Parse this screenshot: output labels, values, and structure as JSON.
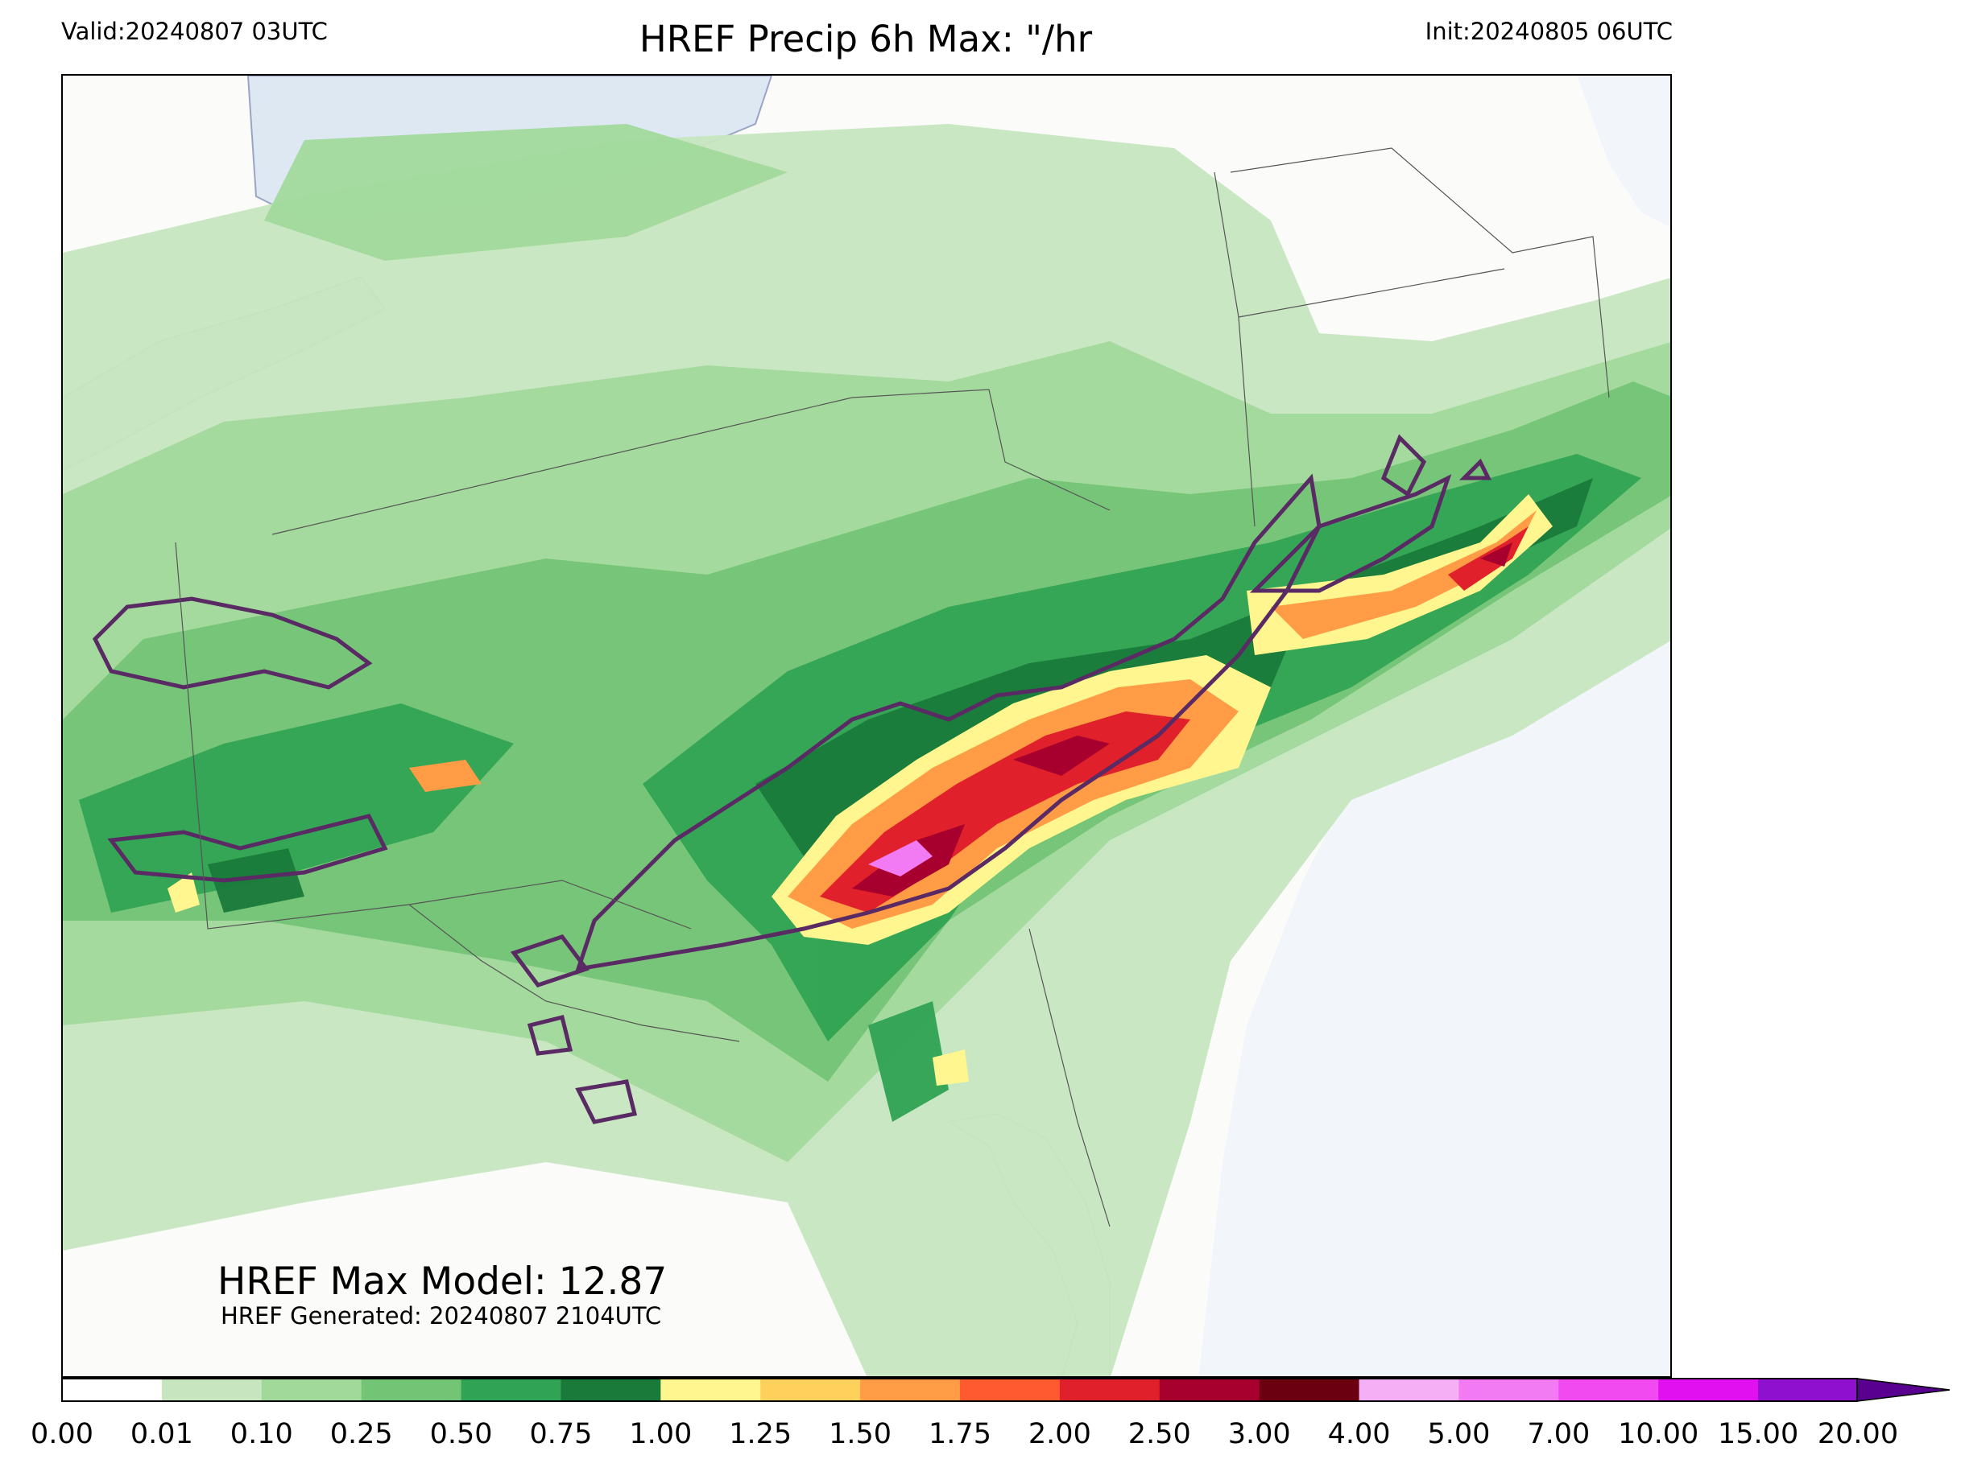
{
  "header": {
    "valid": "Valid:20240807 03UTC",
    "title": "HREF Precip 6h Max: \"/hr",
    "init": "Init:20240805 06UTC"
  },
  "annotations": {
    "max_model": "HREF Max Model: 12.87",
    "generated": "HREF Generated: 20240807 2104UTC"
  },
  "colorbar": {
    "ticks": [
      "0.00",
      "0.01",
      "0.10",
      "0.25",
      "0.50",
      "0.75",
      "1.00",
      "1.25",
      "1.50",
      "1.75",
      "2.00",
      "2.50",
      "3.00",
      "4.00",
      "5.00",
      "7.00",
      "10.00",
      "15.00",
      "20.00"
    ],
    "colors": [
      "#ffffff",
      "#c7e6c0",
      "#a1d99b",
      "#74c476",
      "#31a354",
      "#1a7a3a",
      "#fff68f",
      "#ffd15c",
      "#ff9c45",
      "#ff5a30",
      "#e0202a",
      "#a8002e",
      "#6a0010",
      "#f5b0f5",
      "#f27af2",
      "#f04af0",
      "#e010f0",
      "#9010d0"
    ],
    "extend_color": "#5a0090"
  },
  "map": {
    "ocean_color": "#f2f6fb",
    "lake_color": "#dde8f2",
    "contour_color": "#5a2a64"
  }
}
